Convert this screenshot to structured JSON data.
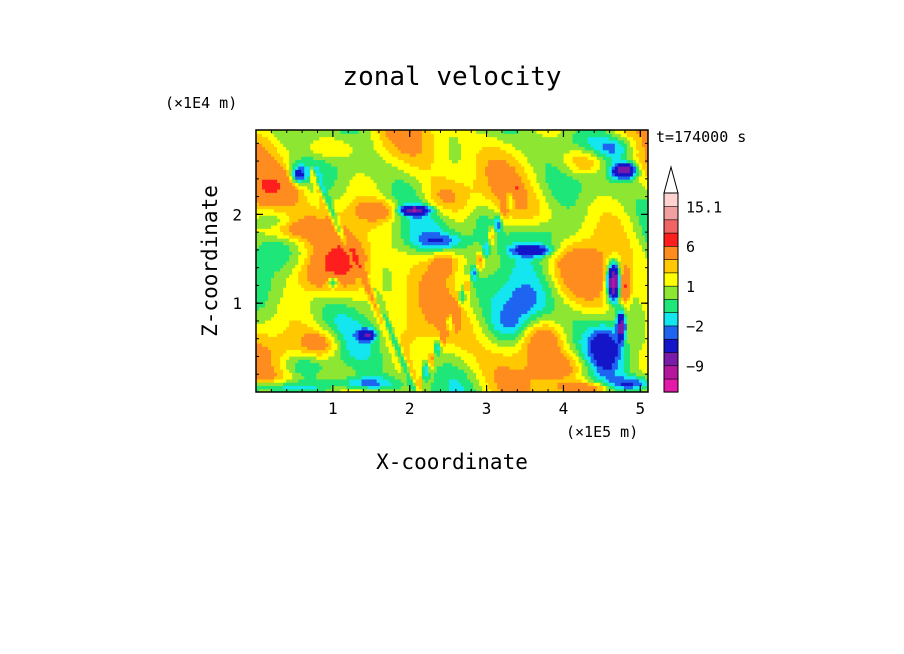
{
  "chart_data": {
    "type": "heatmap",
    "title": "zonal velocity",
    "xlabel": "X-coordinate",
    "ylabel": "Z-coordinate",
    "x_unit": "(×1E5 m)",
    "y_unit": "(×1E4 m)",
    "time_label": "t=174000 s",
    "xlim": [
      0,
      5.1
    ],
    "ylim": [
      0,
      2.95
    ],
    "x_ticks": [
      {
        "value": 1,
        "label": "1"
      },
      {
        "value": 2,
        "label": "2"
      },
      {
        "value": 3,
        "label": "3"
      },
      {
        "value": 4,
        "label": "4"
      },
      {
        "value": 5,
        "label": "5"
      }
    ],
    "y_ticks": [
      {
        "value": 1,
        "label": "1"
      },
      {
        "value": 2,
        "label": "2"
      }
    ],
    "colorbar": {
      "bins": [
        {
          "lo": -15,
          "hi": -12,
          "color": "#e41aa8"
        },
        {
          "lo": -12,
          "hi": -9,
          "color": "#b4169e"
        },
        {
          "lo": -9,
          "hi": -6,
          "color": "#7a1aa8"
        },
        {
          "lo": -6,
          "hi": -3,
          "color": "#1414c8"
        },
        {
          "lo": -3,
          "hi": -2,
          "color": "#1e64f0"
        },
        {
          "lo": -2,
          "hi": -1,
          "color": "#14e6f0"
        },
        {
          "lo": -1,
          "hi": 0,
          "color": "#1ee678"
        },
        {
          "lo": 0,
          "hi": 1,
          "color": "#8ce632"
        },
        {
          "lo": 1,
          "hi": 2,
          "color": "#ffff00"
        },
        {
          "lo": 2,
          "hi": 3,
          "color": "#ffc800"
        },
        {
          "lo": 3,
          "hi": 6,
          "color": "#ff8c1e"
        },
        {
          "lo": 6,
          "hi": 9,
          "color": "#ff1e1e"
        },
        {
          "lo": 9,
          "hi": 12,
          "color": "#f06464"
        },
        {
          "lo": 12,
          "hi": 15.1,
          "color": "#f0a0a0"
        },
        {
          "lo": 15.1,
          "hi": 18,
          "color": "#ffd2d2"
        }
      ],
      "labels": [
        {
          "value": 15.1,
          "label": "15.1"
        },
        {
          "value": 6,
          "label": "6"
        },
        {
          "value": 1,
          "label": "1"
        },
        {
          "value": -2,
          "label": "−2"
        },
        {
          "value": -9,
          "label": "−9"
        }
      ],
      "range": [
        -15,
        18
      ],
      "extend": "max"
    },
    "features": [
      {
        "x": 0.2,
        "z": 2.3,
        "sx": 0.35,
        "sz": 0.2,
        "amp": 3.5
      },
      {
        "x": 0.4,
        "z": 1.85,
        "sx": 0.35,
        "sz": 0.12,
        "amp": 3.5
      },
      {
        "x": 0.8,
        "z": 1.3,
        "sx": 0.35,
        "sz": 0.2,
        "amp": 3.0
      },
      {
        "x": 0.9,
        "z": 2.75,
        "sx": 0.4,
        "sz": 0.15,
        "amp": 2.5
      },
      {
        "x": 1.15,
        "z": 1.5,
        "sx": 0.25,
        "sz": 0.18,
        "amp": 4.0
      },
      {
        "x": 0.85,
        "z": 0.55,
        "sx": 0.25,
        "sz": 0.15,
        "amp": 3.0
      },
      {
        "x": 0.6,
        "z": 0.3,
        "sx": 0.35,
        "sz": 0.15,
        "amp": -2.5
      },
      {
        "x": 1.6,
        "z": 2.05,
        "sx": 0.3,
        "sz": 0.12,
        "amp": 3.0
      },
      {
        "x": 2.4,
        "z": 2.2,
        "sx": 0.3,
        "sz": 0.2,
        "amp": 2.5
      },
      {
        "x": 2.45,
        "z": 1.45,
        "sx": 0.2,
        "sz": 0.15,
        "amp": 3.5
      },
      {
        "x": 2.95,
        "z": 1.9,
        "sx": 0.25,
        "sz": 0.25,
        "amp": -2.5
      },
      {
        "x": 3.5,
        "z": 1.0,
        "sx": 0.3,
        "sz": 0.25,
        "amp": -2.5
      },
      {
        "x": 3.3,
        "z": 0.75,
        "sx": 0.25,
        "sz": 0.2,
        "amp": -2.0
      },
      {
        "x": 3.75,
        "z": 0.6,
        "sx": 0.25,
        "sz": 0.18,
        "amp": 2.5
      },
      {
        "x": 4.2,
        "z": 1.3,
        "sx": 0.4,
        "sz": 0.3,
        "amp": 1.5
      },
      {
        "x": 4.3,
        "z": 2.6,
        "sx": 0.3,
        "sz": 0.15,
        "amp": 3.5
      },
      {
        "x": 4.55,
        "z": 0.5,
        "sx": 0.2,
        "sz": 0.25,
        "amp": -4.0
      },
      {
        "x": 4.65,
        "z": 1.25,
        "sx": 0.08,
        "sz": 0.2,
        "amp": -12.0
      },
      {
        "x": 4.8,
        "z": 1.2,
        "sx": 0.07,
        "sz": 0.18,
        "amp": 5.0
      },
      {
        "x": 4.75,
        "z": 0.75,
        "sx": 0.05,
        "sz": 0.15,
        "amp": -8.0
      },
      {
        "x": 4.8,
        "z": 2.5,
        "sx": 0.15,
        "sz": 0.08,
        "amp": -9.0
      },
      {
        "x": 4.7,
        "z": 2.75,
        "sx": 0.3,
        "sz": 0.15,
        "amp": -3.0
      },
      {
        "x": 2.05,
        "z": 2.05,
        "sx": 0.18,
        "sz": 0.05,
        "amp": -8.0
      },
      {
        "x": 2.4,
        "z": 1.7,
        "sx": 0.4,
        "sz": 0.1,
        "amp": -2.5
      },
      {
        "x": 3.6,
        "z": 1.6,
        "sx": 0.25,
        "sz": 0.06,
        "amp": -5.0
      },
      {
        "x": 3.8,
        "z": 1.75,
        "sx": 0.4,
        "sz": 0.2,
        "amp": -2.5
      },
      {
        "x": 4.0,
        "z": 0.3,
        "sx": 0.35,
        "sz": 0.15,
        "amp": 2.0
      },
      {
        "x": 4.3,
        "z": 0.05,
        "sx": 0.3,
        "sz": 0.06,
        "amp": 4.0
      },
      {
        "x": 0.3,
        "z": 0.05,
        "sx": 0.5,
        "sz": 0.08,
        "amp": -4.0
      },
      {
        "x": 1.4,
        "z": 0.1,
        "sx": 0.4,
        "sz": 0.08,
        "amp": -3.5
      },
      {
        "x": 4.9,
        "z": 0.1,
        "sx": 0.3,
        "sz": 0.08,
        "amp": -3.5
      },
      {
        "x": 1.45,
        "z": 0.65,
        "sx": 0.1,
        "sz": 0.06,
        "amp": -6.0
      },
      {
        "x": 1.0,
        "z": 1.25,
        "sx": 0.08,
        "sz": 0.06,
        "amp": -5.0
      },
      {
        "x": 0.55,
        "z": 2.45,
        "sx": 0.1,
        "sz": 0.1,
        "amp": -5.0
      },
      {
        "x": 0.3,
        "z": 1.9,
        "sx": 0.3,
        "sz": 0.1,
        "amp": -2.0
      }
    ]
  }
}
